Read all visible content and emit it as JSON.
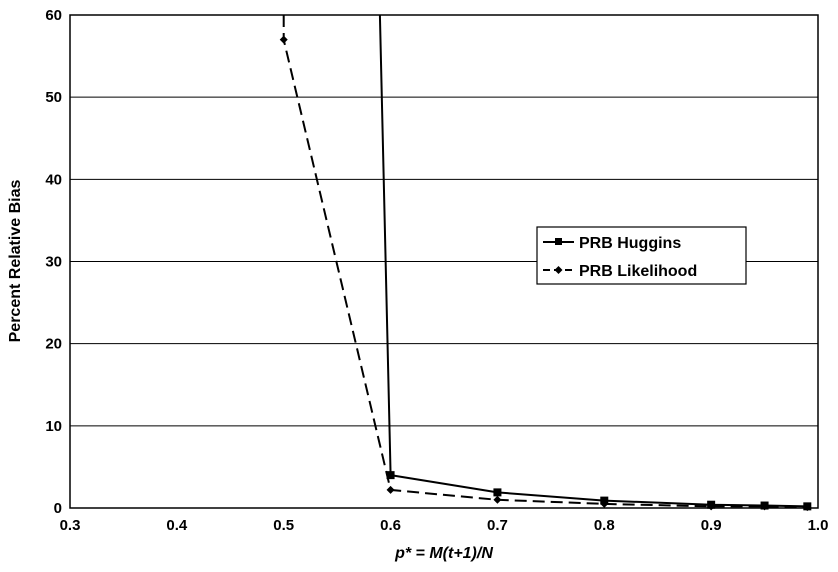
{
  "chart_data": {
    "type": "line",
    "title": "",
    "xlabel": "p* = M(t+1)/N",
    "ylabel": "Percent Relative Bias",
    "xlim": [
      0.3,
      1.0
    ],
    "ylim": [
      0,
      60
    ],
    "xticks": [
      "0.3",
      "0.4",
      "0.5",
      "0.6",
      "0.7",
      "0.8",
      "0.9",
      "1.0"
    ],
    "yticks": [
      "0",
      "10",
      "20",
      "30",
      "40",
      "50",
      "60"
    ],
    "grid": "horizontal",
    "legend_position": "right",
    "series": [
      {
        "name": "PRB Huggins",
        "style": "solid",
        "marker": "square",
        "color": "#000000",
        "x": [
          0.59,
          0.6,
          0.7,
          0.8,
          0.9,
          0.95,
          0.99
        ],
        "y": [
          60,
          4.0,
          1.9,
          0.9,
          0.4,
          0.3,
          0.2
        ],
        "marker_points": [
          false,
          true,
          true,
          true,
          true,
          true,
          true
        ]
      },
      {
        "name": "PRB Likelihood",
        "style": "dashed",
        "marker": "diamond",
        "color": "#000000",
        "x": [
          0.5,
          0.5,
          0.6,
          0.7,
          0.8,
          0.9,
          0.95,
          0.99
        ],
        "y": [
          60,
          57.0,
          2.2,
          1.0,
          0.5,
          0.2,
          0.2,
          0.1
        ],
        "marker_points": [
          false,
          true,
          true,
          true,
          true,
          true,
          true,
          true
        ]
      }
    ]
  }
}
